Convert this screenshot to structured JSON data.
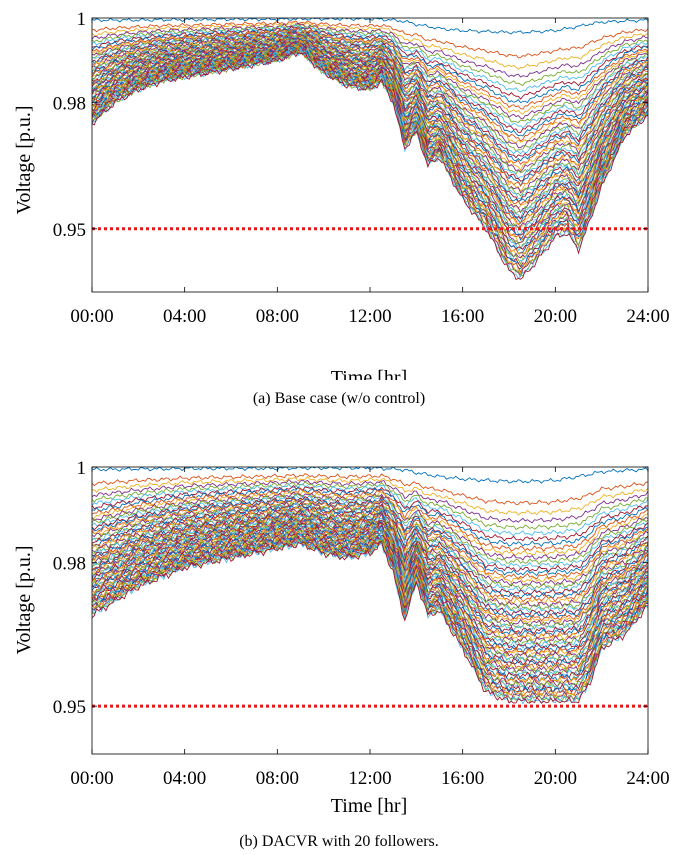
{
  "chart_data": [
    {
      "type": "line",
      "caption": "(a) Base case (w/o control)",
      "xlabel": "Time [hr]",
      "ylabel": "Voltage [p.u.]",
      "xlim": [
        0,
        24
      ],
      "ylim": [
        0.935,
        1.0
      ],
      "xticks": [
        0,
        4,
        8,
        12,
        16,
        20,
        24
      ],
      "xtick_labels": [
        "00:00",
        "04:00",
        "08:00",
        "12:00",
        "16:00",
        "20:00",
        "24:00"
      ],
      "yticks": [
        0.95,
        0.98,
        1.0
      ],
      "ytick_labels": [
        "0.95",
        "0.98",
        "1"
      ],
      "grid": false,
      "reference_line": {
        "y": 0.95,
        "color": "#e41a1c",
        "style": "dotted"
      },
      "envelope": {
        "x": [
          0,
          1,
          2,
          3,
          4,
          5,
          6,
          7,
          8,
          9,
          10,
          11,
          12,
          12.5,
          13,
          13.5,
          14,
          14.5,
          15,
          16,
          17,
          18,
          18.5,
          19,
          20,
          20.5,
          21,
          21.5,
          22,
          23,
          24
        ],
        "max": [
          0.9995,
          0.9995,
          0.9995,
          0.9996,
          0.9996,
          0.9996,
          0.9997,
          0.9997,
          0.9997,
          0.9998,
          0.9998,
          0.9998,
          0.9998,
          0.9997,
          0.9995,
          0.9992,
          0.9985,
          0.998,
          0.9975,
          0.997,
          0.9968,
          0.9966,
          0.9966,
          0.9967,
          0.997,
          0.9975,
          0.998,
          0.9986,
          0.999,
          0.9993,
          0.9995
        ],
        "min": [
          0.975,
          0.98,
          0.983,
          0.985,
          0.986,
          0.987,
          0.988,
          0.989,
          0.99,
          0.992,
          0.987,
          0.984,
          0.983,
          0.985,
          0.98,
          0.969,
          0.973,
          0.965,
          0.967,
          0.957,
          0.95,
          0.94,
          0.938,
          0.941,
          0.948,
          0.949,
          0.945,
          0.952,
          0.96,
          0.972,
          0.977
        ]
      },
      "series_count": 70,
      "colors": [
        "#0072bd",
        "#d95319",
        "#edb120",
        "#7e2f8e",
        "#77ac30",
        "#4dbeee",
        "#a2142f"
      ]
    },
    {
      "type": "line",
      "caption": "(b) DACVR with 20 followers.",
      "xlabel": "Time [hr]",
      "ylabel": "Voltage [p.u.]",
      "xlim": [
        0,
        24
      ],
      "ylim": [
        0.94,
        1.0
      ],
      "xticks": [
        0,
        4,
        8,
        12,
        16,
        20,
        24
      ],
      "xtick_labels": [
        "00:00",
        "04:00",
        "08:00",
        "12:00",
        "16:00",
        "20:00",
        "24:00"
      ],
      "yticks": [
        0.95,
        0.98,
        1.0
      ],
      "ytick_labels": [
        "0.95",
        "0.98",
        "1"
      ],
      "grid": false,
      "reference_line": {
        "y": 0.95,
        "color": "#e41a1c",
        "style": "dotted"
      },
      "envelope": {
        "x": [
          0,
          1,
          2,
          3,
          4,
          5,
          6,
          7,
          8,
          9,
          10,
          11,
          12,
          12.5,
          13,
          13.5,
          14,
          14.5,
          15,
          16,
          17,
          18,
          18.5,
          19,
          20,
          20.5,
          21,
          21.5,
          22,
          23,
          24
        ],
        "max": [
          0.9995,
          0.9995,
          0.9996,
          0.9996,
          0.9997,
          0.9997,
          0.9997,
          0.9997,
          0.9997,
          0.9998,
          0.9998,
          0.9998,
          0.9998,
          0.9997,
          0.9996,
          0.9994,
          0.9988,
          0.9984,
          0.998,
          0.9975,
          0.9972,
          0.997,
          0.997,
          0.997,
          0.9972,
          0.9976,
          0.998,
          0.9985,
          0.999,
          0.9993,
          0.9995
        ],
        "min": [
          0.969,
          0.972,
          0.975,
          0.977,
          0.979,
          0.98,
          0.981,
          0.982,
          0.983,
          0.984,
          0.982,
          0.981,
          0.982,
          0.984,
          0.978,
          0.968,
          0.976,
          0.969,
          0.97,
          0.962,
          0.953,
          0.951,
          0.951,
          0.951,
          0.951,
          0.951,
          0.951,
          0.955,
          0.962,
          0.965,
          0.971
        ]
      },
      "series_count": 70,
      "colors": [
        "#0072bd",
        "#d95319",
        "#edb120",
        "#7e2f8e",
        "#77ac30",
        "#4dbeee",
        "#a2142f"
      ]
    }
  ]
}
